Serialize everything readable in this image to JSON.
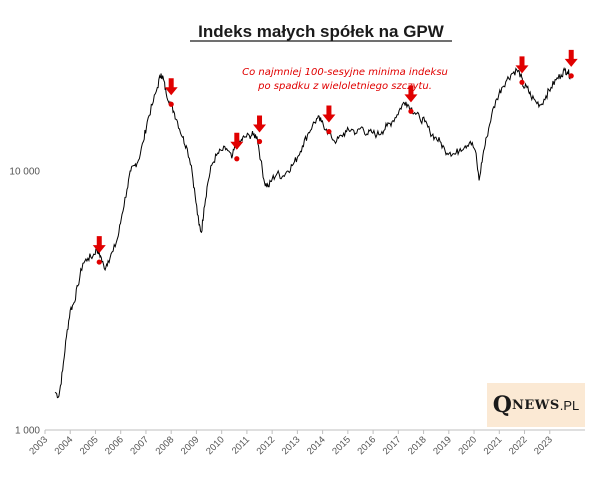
{
  "chart_data": {
    "type": "line",
    "title": "Indeks małych spółek na GPW",
    "annotation": [
      "Co najmniej 100-sesyjne minima indeksu",
      "po spadku z wieloletniego szczytu."
    ],
    "y_scale": "log",
    "ylim": [
      1000,
      30000
    ],
    "y_ticks": [
      {
        "value": 1000,
        "label": "1 000"
      },
      {
        "value": 10000,
        "label": "10 000"
      }
    ],
    "xlim": [
      2003.0,
      2024.0
    ],
    "x_ticks": [
      "2003",
      "2004",
      "2005",
      "2006",
      "2007",
      "2008",
      "2009",
      "2010",
      "2011",
      "2012",
      "2013",
      "2014",
      "2015",
      "2016",
      "2017",
      "2018",
      "2019",
      "2020",
      "2021",
      "2022",
      "2023"
    ],
    "series": [
      {
        "name": "Indeks małych spółek",
        "color": "#000000",
        "points": [
          [
            2003.4,
            1400
          ],
          [
            2003.55,
            1350
          ],
          [
            2003.7,
            1700
          ],
          [
            2003.85,
            2300
          ],
          [
            2004.0,
            2900
          ],
          [
            2004.15,
            3100
          ],
          [
            2004.3,
            3600
          ],
          [
            2004.5,
            4400
          ],
          [
            2004.7,
            4600
          ],
          [
            2004.9,
            4700
          ],
          [
            2005.05,
            5000
          ],
          [
            2005.1,
            4900
          ],
          [
            2005.2,
            4700
          ],
          [
            2005.35,
            4200
          ],
          [
            2005.5,
            4500
          ],
          [
            2005.7,
            4900
          ],
          [
            2005.9,
            5600
          ],
          [
            2006.05,
            6800
          ],
          [
            2006.25,
            8500
          ],
          [
            2006.4,
            10000
          ],
          [
            2006.55,
            10500
          ],
          [
            2006.7,
            11000
          ],
          [
            2006.9,
            13000
          ],
          [
            2007.05,
            15500
          ],
          [
            2007.25,
            18000
          ],
          [
            2007.45,
            21000
          ],
          [
            2007.6,
            23800
          ],
          [
            2007.7,
            22500
          ],
          [
            2007.8,
            20000
          ],
          [
            2007.95,
            18500
          ],
          [
            2008.1,
            17000
          ],
          [
            2008.25,
            15500
          ],
          [
            2008.45,
            13500
          ],
          [
            2008.6,
            12500
          ],
          [
            2008.8,
            10500
          ],
          [
            2008.95,
            8000
          ],
          [
            2009.1,
            6200
          ],
          [
            2009.2,
            5800
          ],
          [
            2009.3,
            7200
          ],
          [
            2009.45,
            9000
          ],
          [
            2009.6,
            10500
          ],
          [
            2009.8,
            11500
          ],
          [
            2010.0,
            12000
          ],
          [
            2010.2,
            12200
          ],
          [
            2010.4,
            11200
          ],
          [
            2010.55,
            12500
          ],
          [
            2010.75,
            13000
          ],
          [
            2010.9,
            13500
          ],
          [
            2011.1,
            13700
          ],
          [
            2011.25,
            13800
          ],
          [
            2011.4,
            13600
          ],
          [
            2011.55,
            11000
          ],
          [
            2011.7,
            9000
          ],
          [
            2011.85,
            8700
          ],
          [
            2012.0,
            9300
          ],
          [
            2012.2,
            9800
          ],
          [
            2012.4,
            9500
          ],
          [
            2012.6,
            10000
          ],
          [
            2012.8,
            10500
          ],
          [
            2013.0,
            11300
          ],
          [
            2013.2,
            12500
          ],
          [
            2013.4,
            13800
          ],
          [
            2013.6,
            15000
          ],
          [
            2013.8,
            16000
          ],
          [
            2013.95,
            15500
          ],
          [
            2014.15,
            14500
          ],
          [
            2014.35,
            13500
          ],
          [
            2014.55,
            13000
          ],
          [
            2014.75,
            13700
          ],
          [
            2014.95,
            14200
          ],
          [
            2015.15,
            14500
          ],
          [
            2015.35,
            14000
          ],
          [
            2015.55,
            14800
          ],
          [
            2015.75,
            13900
          ],
          [
            2015.95,
            14100
          ],
          [
            2016.15,
            13800
          ],
          [
            2016.35,
            14200
          ],
          [
            2016.55,
            14900
          ],
          [
            2016.75,
            15500
          ],
          [
            2016.95,
            16500
          ],
          [
            2017.15,
            18000
          ],
          [
            2017.3,
            18500
          ],
          [
            2017.5,
            17500
          ],
          [
            2017.65,
            16800
          ],
          [
            2017.85,
            16000
          ],
          [
            2018.05,
            15500
          ],
          [
            2018.25,
            14200
          ],
          [
            2018.45,
            13500
          ],
          [
            2018.65,
            13000
          ],
          [
            2018.85,
            12000
          ],
          [
            2019.05,
            11800
          ],
          [
            2019.25,
            11600
          ],
          [
            2019.45,
            12200
          ],
          [
            2019.65,
            12500
          ],
          [
            2019.85,
            13000
          ],
          [
            2020.05,
            12000
          ],
          [
            2020.2,
            9200
          ],
          [
            2020.35,
            11500
          ],
          [
            2020.5,
            13500
          ],
          [
            2020.7,
            16500
          ],
          [
            2020.9,
            19000
          ],
          [
            2021.1,
            21000
          ],
          [
            2021.3,
            22500
          ],
          [
            2021.5,
            23800
          ],
          [
            2021.7,
            24500
          ],
          [
            2021.85,
            23500
          ],
          [
            2021.95,
            21200
          ],
          [
            2022.1,
            21000
          ],
          [
            2022.25,
            19500
          ],
          [
            2022.45,
            18500
          ],
          [
            2022.65,
            18000
          ],
          [
            2022.85,
            19500
          ],
          [
            2023.05,
            21000
          ],
          [
            2023.25,
            22500
          ],
          [
            2023.45,
            23500
          ],
          [
            2023.6,
            24500
          ],
          [
            2023.7,
            24200
          ],
          [
            2023.82,
            23300
          ]
        ]
      }
    ],
    "markers": [
      {
        "x": 2005.15,
        "y": 4450
      },
      {
        "x": 2008.0,
        "y": 18100
      },
      {
        "x": 2010.6,
        "y": 11150
      },
      {
        "x": 2011.5,
        "y": 13000
      },
      {
        "x": 2014.25,
        "y": 14200
      },
      {
        "x": 2017.5,
        "y": 17000
      },
      {
        "x": 2021.9,
        "y": 22000
      },
      {
        "x": 2023.85,
        "y": 23300
      }
    ],
    "marker_color": "#e00000"
  },
  "logo": {
    "q": "Q",
    "news": "NEWS",
    "pl": ".PL"
  }
}
